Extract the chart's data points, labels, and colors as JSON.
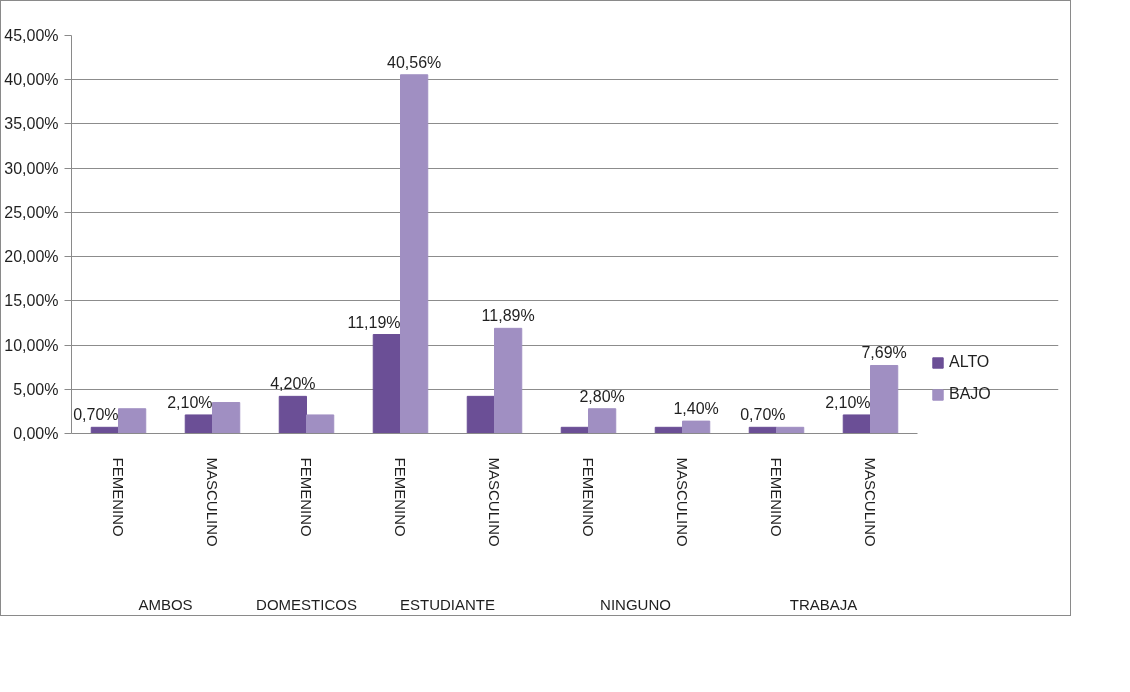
{
  "chart_data": {
    "type": "bar",
    "categories": [
      [
        "AMBOS",
        "FEMENINO"
      ],
      [
        null,
        "MASCULINO"
      ],
      [
        "DOMESTICOS",
        "FEMENINO"
      ],
      [
        "ESTUDIANTE",
        "FEMENINO"
      ],
      [
        null,
        "MASCULINO"
      ],
      [
        "NINGUNO",
        "FEMENINO"
      ],
      [
        null,
        "MASCULINO"
      ],
      [
        "TRABAJA",
        "FEMENINO"
      ],
      [
        null,
        "MASCULINO"
      ]
    ],
    "series": [
      {
        "name": "ALTO",
        "color": "#6b4f96",
        "values": [
          0.7,
          2.1,
          4.2,
          11.19,
          4.2,
          0.7,
          0.7,
          0.7,
          2.1
        ],
        "value_labels": [
          "0,70%",
          "2,10%",
          "4,20%",
          "11,19%",
          null,
          null,
          null,
          "0,70%",
          "2,10%"
        ]
      },
      {
        "name": "BAJO",
        "color": "#a08fc2",
        "values": [
          2.8,
          3.5,
          2.1,
          40.56,
          11.89,
          2.8,
          1.4,
          0.7,
          7.69
        ],
        "value_labels": [
          null,
          null,
          null,
          "40,56%",
          "11,89%",
          "2,80%",
          "1,40%",
          null,
          "7,69%"
        ]
      }
    ],
    "ylim": [
      0,
      45
    ],
    "yticks": [
      {
        "value": 0,
        "label": "0,00%"
      },
      {
        "value": 5,
        "label": "5,00%"
      },
      {
        "value": 10,
        "label": "10,00%"
      },
      {
        "value": 15,
        "label": "15,00%"
      },
      {
        "value": 20,
        "label": "20,00%"
      },
      {
        "value": 25,
        "label": "25,00%"
      },
      {
        "value": 30,
        "label": "30,00%"
      },
      {
        "value": 35,
        "label": "35,00%"
      },
      {
        "value": 40,
        "label": "40,00%"
      },
      {
        "value": 45,
        "label": "45,00%"
      }
    ],
    "grid": "y",
    "legend": "right"
  }
}
